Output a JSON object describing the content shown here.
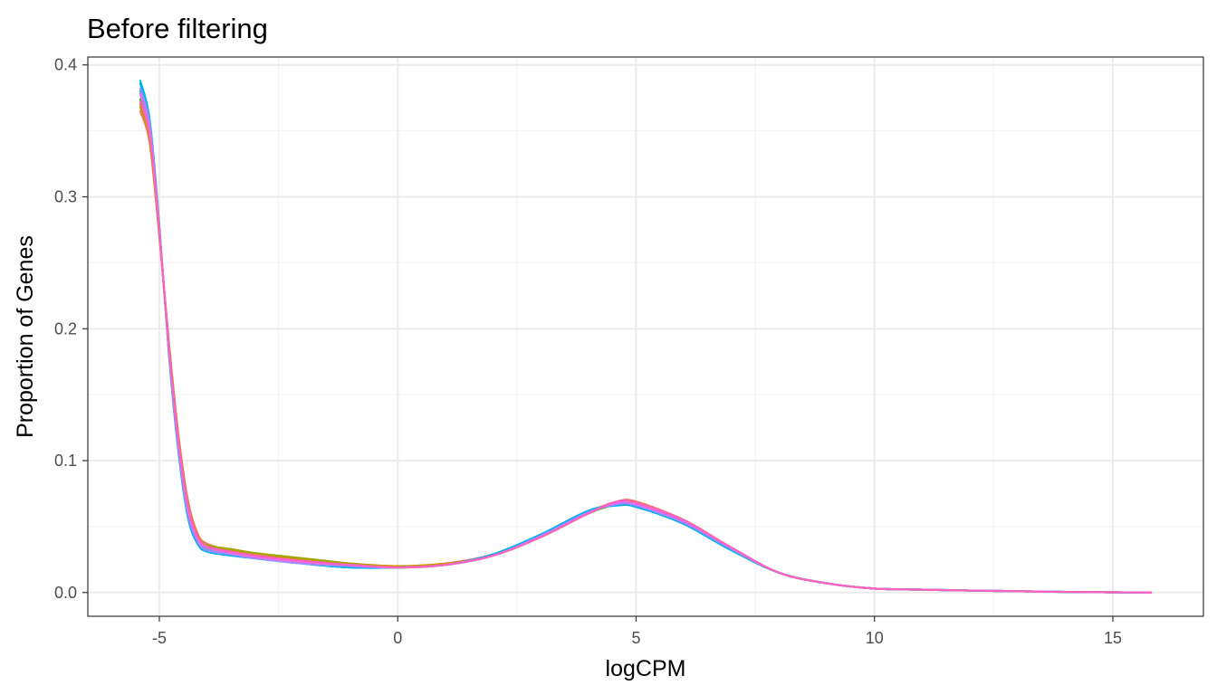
{
  "chart_data": {
    "type": "line",
    "title": "Before filtering",
    "xlabel": "logCPM",
    "ylabel": "Proportion of Genes",
    "xlim": [
      -6.5,
      16.9
    ],
    "ylim": [
      -0.018,
      0.406
    ],
    "x_ticks": [
      -5,
      0,
      5,
      10,
      15
    ],
    "x_tick_labels": [
      "-5",
      "0",
      "5",
      "10",
      "15"
    ],
    "x_minor_ticks": [
      -2.5,
      2.5,
      7.5,
      12.5
    ],
    "y_ticks": [
      0.0,
      0.1,
      0.2,
      0.3,
      0.4
    ],
    "y_tick_labels": [
      "0.0",
      "0.1",
      "0.2",
      "0.3",
      "0.4"
    ],
    "y_minor_ticks": [
      0.05,
      0.15,
      0.25,
      0.35
    ],
    "grid": true,
    "legend": "none",
    "series": [
      {
        "color": "#F8766D",
        "x": [
          -5.4,
          -5.2,
          -5.0,
          -4.8,
          -4.6,
          -4.4,
          -4.2,
          -4.0,
          -3.5,
          -3.0,
          -2.0,
          -1.0,
          0.0,
          1.0,
          2.0,
          3.0,
          4.0,
          4.6,
          5.0,
          6.0,
          7.0,
          8.0,
          9.0,
          10.0,
          11.0,
          12.0,
          13.0,
          14.0,
          15.0,
          15.8
        ],
        "y": [
          0.365,
          0.34,
          0.27,
          0.19,
          0.12,
          0.07,
          0.045,
          0.037,
          0.032,
          0.029,
          0.025,
          0.022,
          0.02,
          0.022,
          0.029,
          0.043,
          0.061,
          0.069,
          0.069,
          0.055,
          0.034,
          0.015,
          0.007,
          0.003,
          0.0022,
          0.0015,
          0.001,
          0.0005,
          0.0002,
          0.0
        ]
      },
      {
        "color": "#D89000",
        "x": [
          -5.4,
          -5.2,
          -5.0,
          -4.8,
          -4.6,
          -4.4,
          -4.2,
          -4.0,
          -3.5,
          -3.0,
          -2.0,
          -1.0,
          0.0,
          1.0,
          2.0,
          3.0,
          4.0,
          4.6,
          5.0,
          6.0,
          7.0,
          8.0,
          9.0,
          10.0,
          11.0,
          12.0,
          13.0,
          14.0,
          15.0,
          15.8
        ],
        "y": [
          0.368,
          0.342,
          0.271,
          0.189,
          0.118,
          0.068,
          0.044,
          0.036,
          0.032,
          0.028,
          0.025,
          0.022,
          0.02,
          0.022,
          0.028,
          0.042,
          0.06,
          0.069,
          0.068,
          0.055,
          0.034,
          0.015,
          0.007,
          0.003,
          0.0022,
          0.0015,
          0.001,
          0.0005,
          0.0002,
          0.0
        ]
      },
      {
        "color": "#A3A500",
        "x": [
          -5.4,
          -5.2,
          -5.0,
          -4.8,
          -4.6,
          -4.4,
          -4.2,
          -4.0,
          -3.5,
          -3.0,
          -2.0,
          -1.0,
          0.0,
          1.0,
          2.0,
          3.0,
          4.0,
          4.6,
          5.0,
          6.0,
          7.0,
          8.0,
          9.0,
          10.0,
          11.0,
          12.0,
          13.0,
          14.0,
          15.0,
          15.8
        ],
        "y": [
          0.37,
          0.344,
          0.272,
          0.188,
          0.117,
          0.067,
          0.043,
          0.036,
          0.033,
          0.03,
          0.026,
          0.022,
          0.019,
          0.021,
          0.028,
          0.042,
          0.06,
          0.068,
          0.068,
          0.055,
          0.034,
          0.015,
          0.007,
          0.003,
          0.0022,
          0.0015,
          0.001,
          0.0005,
          0.0002,
          0.0
        ]
      },
      {
        "color": "#39B600",
        "x": [
          -5.4,
          -5.2,
          -5.0,
          -4.8,
          -4.6,
          -4.4,
          -4.2,
          -4.0,
          -3.5,
          -3.0,
          -2.0,
          -1.0,
          0.0,
          1.0,
          2.0,
          3.0,
          4.0,
          4.6,
          5.0,
          6.0,
          7.0,
          8.0,
          9.0,
          10.0,
          11.0,
          12.0,
          13.0,
          14.0,
          15.0,
          15.8
        ],
        "y": [
          0.374,
          0.347,
          0.274,
          0.186,
          0.115,
          0.065,
          0.042,
          0.035,
          0.031,
          0.028,
          0.024,
          0.021,
          0.019,
          0.021,
          0.028,
          0.042,
          0.06,
          0.067,
          0.067,
          0.054,
          0.033,
          0.015,
          0.007,
          0.003,
          0.0022,
          0.0015,
          0.001,
          0.0005,
          0.0002,
          0.0
        ]
      },
      {
        "color": "#00BF7D",
        "x": [
          -5.4,
          -5.2,
          -5.0,
          -4.8,
          -4.6,
          -4.4,
          -4.2,
          -4.0,
          -3.5,
          -3.0,
          -2.0,
          -1.0,
          0.0,
          1.0,
          2.0,
          3.0,
          4.0,
          4.6,
          5.0,
          6.0,
          7.0,
          8.0,
          9.0,
          10.0,
          11.0,
          12.0,
          13.0,
          14.0,
          15.0,
          15.8
        ],
        "y": [
          0.38,
          0.352,
          0.276,
          0.184,
          0.112,
          0.062,
          0.04,
          0.033,
          0.03,
          0.027,
          0.023,
          0.02,
          0.019,
          0.021,
          0.028,
          0.043,
          0.061,
          0.067,
          0.066,
          0.053,
          0.033,
          0.015,
          0.007,
          0.003,
          0.0022,
          0.0015,
          0.001,
          0.0005,
          0.0002,
          0.0
        ]
      },
      {
        "color": "#00BFC4",
        "x": [
          -5.4,
          -5.2,
          -5.0,
          -4.8,
          -4.6,
          -4.4,
          -4.2,
          -4.0,
          -3.5,
          -3.0,
          -2.0,
          -1.0,
          0.0,
          1.0,
          2.0,
          3.0,
          4.0,
          4.6,
          5.0,
          6.0,
          7.0,
          8.0,
          9.0,
          10.0,
          11.0,
          12.0,
          13.0,
          14.0,
          15.0,
          15.8
        ],
        "y": [
          0.388,
          0.358,
          0.278,
          0.182,
          0.108,
          0.058,
          0.038,
          0.032,
          0.029,
          0.026,
          0.022,
          0.019,
          0.019,
          0.021,
          0.029,
          0.044,
          0.062,
          0.066,
          0.065,
          0.052,
          0.032,
          0.015,
          0.007,
          0.003,
          0.0022,
          0.0015,
          0.001,
          0.0005,
          0.0002,
          0.0
        ]
      },
      {
        "color": "#00B0F6",
        "x": [
          -5.4,
          -5.2,
          -5.0,
          -4.8,
          -4.6,
          -4.4,
          -4.2,
          -4.0,
          -3.5,
          -3.0,
          -2.0,
          -1.0,
          0.0,
          1.0,
          2.0,
          3.0,
          4.0,
          4.6,
          5.0,
          6.0,
          7.0,
          8.0,
          9.0,
          10.0,
          11.0,
          12.0,
          13.0,
          14.0,
          15.0,
          15.8
        ],
        "y": [
          0.386,
          0.356,
          0.277,
          0.181,
          0.107,
          0.057,
          0.037,
          0.031,
          0.028,
          0.026,
          0.022,
          0.019,
          0.019,
          0.021,
          0.029,
          0.044,
          0.062,
          0.066,
          0.065,
          0.052,
          0.032,
          0.015,
          0.007,
          0.003,
          0.0022,
          0.0015,
          0.001,
          0.0005,
          0.0002,
          0.0
        ]
      },
      {
        "color": "#9590FF",
        "x": [
          -5.4,
          -5.2,
          -5.0,
          -4.8,
          -4.6,
          -4.4,
          -4.2,
          -4.0,
          -3.5,
          -3.0,
          -2.0,
          -1.0,
          0.0,
          1.0,
          2.0,
          3.0,
          4.0,
          4.6,
          5.0,
          6.0,
          7.0,
          8.0,
          9.0,
          10.0,
          11.0,
          12.0,
          13.0,
          14.0,
          15.0,
          15.8
        ],
        "y": [
          0.382,
          0.354,
          0.276,
          0.183,
          0.11,
          0.06,
          0.039,
          0.032,
          0.029,
          0.026,
          0.022,
          0.02,
          0.019,
          0.021,
          0.028,
          0.043,
          0.061,
          0.067,
          0.066,
          0.053,
          0.033,
          0.015,
          0.007,
          0.003,
          0.0022,
          0.0015,
          0.001,
          0.0005,
          0.0002,
          0.0
        ]
      },
      {
        "color": "#E76BF3",
        "x": [
          -5.4,
          -5.2,
          -5.0,
          -4.8,
          -4.6,
          -4.4,
          -4.2,
          -4.0,
          -3.5,
          -3.0,
          -2.0,
          -1.0,
          0.0,
          1.0,
          2.0,
          3.0,
          4.0,
          4.6,
          5.0,
          6.0,
          7.0,
          8.0,
          9.0,
          10.0,
          11.0,
          12.0,
          13.0,
          14.0,
          15.0,
          15.8
        ],
        "y": [
          0.378,
          0.35,
          0.275,
          0.185,
          0.113,
          0.063,
          0.041,
          0.034,
          0.03,
          0.027,
          0.023,
          0.021,
          0.019,
          0.021,
          0.028,
          0.042,
          0.06,
          0.068,
          0.067,
          0.054,
          0.034,
          0.015,
          0.007,
          0.003,
          0.0022,
          0.0015,
          0.001,
          0.0005,
          0.0002,
          0.0
        ]
      },
      {
        "color": "#FF62BC",
        "x": [
          -5.4,
          -5.2,
          -5.0,
          -4.8,
          -4.6,
          -4.4,
          -4.2,
          -4.0,
          -3.5,
          -3.0,
          -2.0,
          -1.0,
          0.0,
          1.0,
          2.0,
          3.0,
          4.0,
          4.6,
          5.0,
          6.0,
          7.0,
          8.0,
          9.0,
          10.0,
          11.0,
          12.0,
          13.0,
          14.0,
          15.0,
          15.8
        ],
        "y": [
          0.372,
          0.346,
          0.273,
          0.187,
          0.116,
          0.066,
          0.043,
          0.035,
          0.031,
          0.028,
          0.024,
          0.021,
          0.019,
          0.021,
          0.028,
          0.042,
          0.06,
          0.069,
          0.068,
          0.055,
          0.034,
          0.015,
          0.007,
          0.003,
          0.0022,
          0.0015,
          0.001,
          0.0005,
          0.0002,
          0.0
        ]
      }
    ]
  }
}
